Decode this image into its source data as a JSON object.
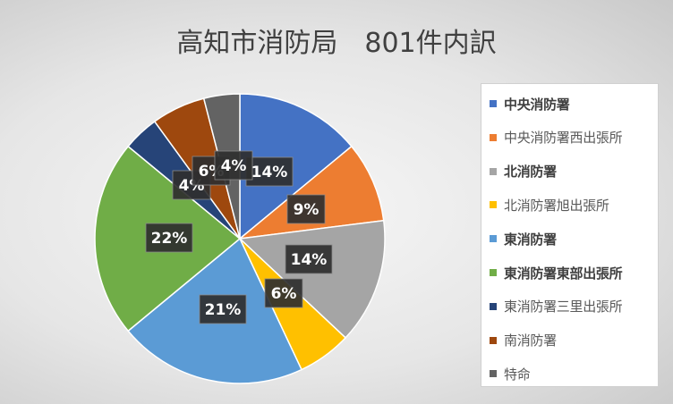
{
  "chart_data": {
    "type": "pie",
    "title": "高知市消防局　801件内訳",
    "slices": [
      {
        "name": "中央消防署",
        "value": 14,
        "label": "14%",
        "color": "#4472C4",
        "bold": true
      },
      {
        "name": "中央消防署西出張所",
        "value": 9,
        "label": "9%",
        "color": "#ED7D31",
        "bold": false
      },
      {
        "name": "北消防署",
        "value": 14,
        "label": "14%",
        "color": "#A5A5A5",
        "bold": true
      },
      {
        "name": "北消防署旭出張所",
        "value": 6,
        "label": "6%",
        "color": "#FFC000",
        "bold": false
      },
      {
        "name": "東消防署",
        "value": 21,
        "label": "21%",
        "color": "#5B9BD5",
        "bold": true
      },
      {
        "name": "東消防署東部出張所",
        "value": 22,
        "label": "22%",
        "color": "#70AD47",
        "bold": true
      },
      {
        "name": "東消防署三里出張所",
        "value": 4,
        "label": "4%",
        "color": "#264478",
        "bold": false
      },
      {
        "name": "南消防署",
        "value": 6,
        "label": "6%",
        "color": "#9E480E",
        "bold": false
      },
      {
        "name": "特命",
        "value": 4,
        "label": "4%",
        "color": "#636363",
        "bold": false
      }
    ],
    "legend_position": "right"
  }
}
